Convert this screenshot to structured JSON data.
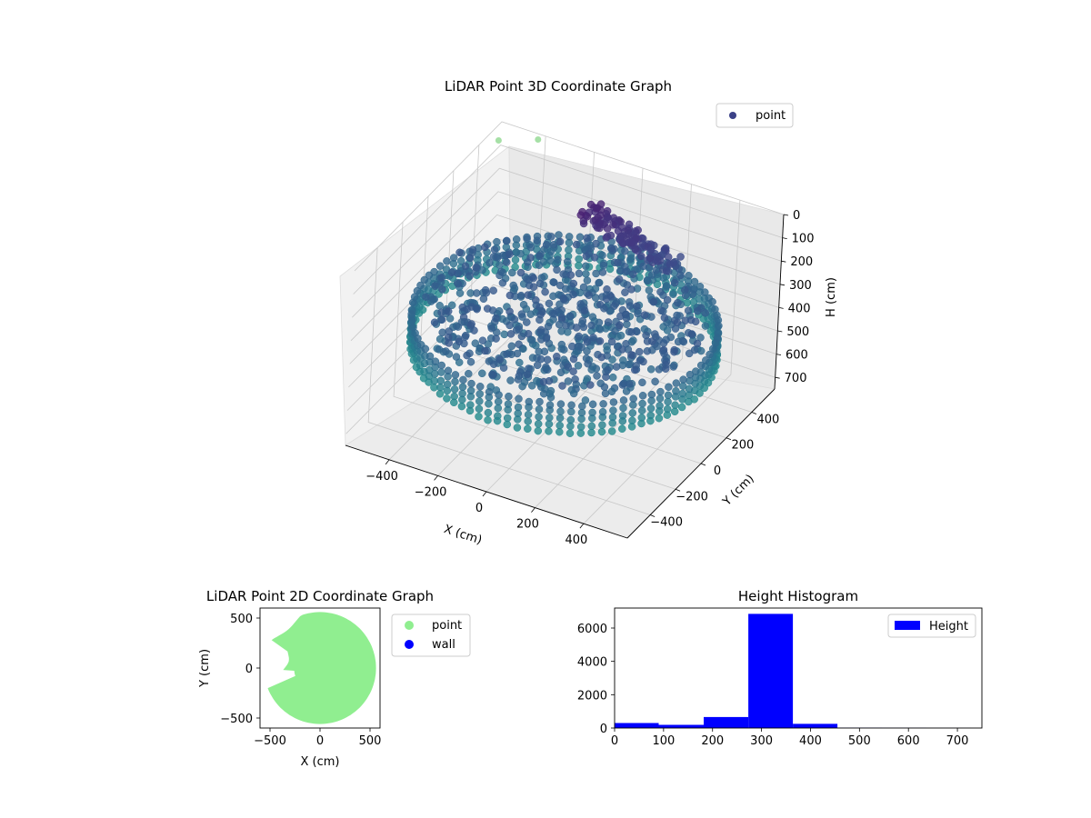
{
  "chart_data": [
    {
      "type": "scatter",
      "projection": "3d",
      "title": "LiDAR Point 3D Coordinate Graph",
      "xlabel": "X (cm)",
      "ylabel": "Y (cm)",
      "zlabel": "H (cm)",
      "x_ticks": [
        -400,
        -200,
        0,
        200,
        400
      ],
      "y_ticks": [
        -400,
        -200,
        0,
        200,
        400
      ],
      "z_ticks": [
        0,
        100,
        200,
        300,
        400,
        500,
        600,
        700
      ],
      "x_tick_labels": [
        "−400",
        "−200",
        "0",
        "200",
        "400"
      ],
      "y_tick_labels": [
        "−400",
        "−200",
        "0",
        "200",
        "400"
      ],
      "z_tick_labels": [
        "0",
        "100",
        "200",
        "300",
        "400",
        "500",
        "600",
        "700"
      ],
      "xlim": [
        -580,
        580
      ],
      "ylim": [
        -580,
        580
      ],
      "zlim": [
        0,
        750
      ],
      "z_inverted": true,
      "grid": true,
      "legend_position": "top-right",
      "series": [
        {
          "name": "point",
          "color": "#3b4187",
          "colormap": "viridis",
          "shape": "ring of points at radius ~560 cm, height ~300-450 cm"
        }
      ],
      "outliers": [
        {
          "x": -560,
          "y": 520,
          "h": 40
        },
        {
          "x": -420,
          "y": 560,
          "h": 10
        }
      ]
    },
    {
      "type": "scatter",
      "title": "LiDAR Point 2D Coordinate Graph",
      "xlabel": "X (cm)",
      "ylabel": "Y (cm)",
      "x_ticks": [
        -500,
        0,
        500
      ],
      "y_ticks": [
        -500,
        0,
        500
      ],
      "x_tick_labels": [
        "−500",
        "0",
        "500"
      ],
      "y_tick_labels": [
        "−500",
        "0",
        "500"
      ],
      "xlim": [
        -600,
        600
      ],
      "ylim": [
        -600,
        600
      ],
      "grid": false,
      "legend_position": "outside-right",
      "series": [
        {
          "name": "point",
          "color": "#90ee90",
          "shape": "filled disc radius ~560 cm with notch on left"
        },
        {
          "name": "wall",
          "color": "#0000ff"
        }
      ]
    },
    {
      "type": "bar",
      "title": "Height Histogram",
      "xlabel": "",
      "ylabel": "",
      "bin_edges": [
        0,
        90,
        182,
        273,
        364,
        455,
        546,
        637,
        728
      ],
      "values": [
        300,
        190,
        660,
        6850,
        250,
        15,
        10,
        5
      ],
      "xlim": [
        0,
        750
      ],
      "ylim": [
        0,
        7200
      ],
      "x_ticks": [
        0,
        100,
        200,
        300,
        400,
        500,
        600,
        700
      ],
      "y_ticks": [
        0,
        2000,
        4000,
        6000
      ],
      "x_tick_labels": [
        "0",
        "100",
        "200",
        "300",
        "400",
        "500",
        "600",
        "700"
      ],
      "y_tick_labels": [
        "0",
        "2000",
        "4000",
        "6000"
      ],
      "legend_position": "top-right",
      "series": [
        {
          "name": "Height",
          "color": "#0000ff"
        }
      ]
    }
  ]
}
